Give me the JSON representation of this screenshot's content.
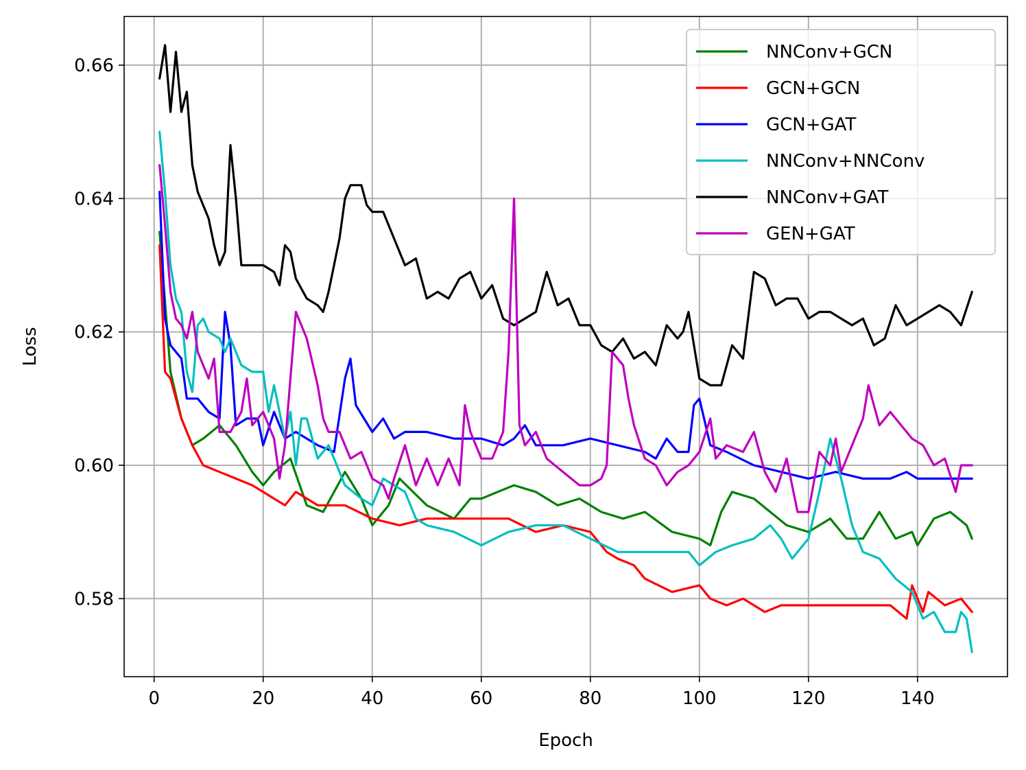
{
  "chart_data": {
    "type": "line",
    "title": "",
    "xlabel": "Epoch",
    "ylabel": "Loss",
    "xlim": [
      -5.5,
      156.5
    ],
    "ylim": [
      0.5683,
      0.6673
    ],
    "xticks": [
      0,
      20,
      40,
      60,
      80,
      100,
      120,
      140
    ],
    "yticks": [
      0.58,
      0.6,
      0.62,
      0.64,
      0.66
    ],
    "ytick_labels": [
      "0.58",
      "0.60",
      "0.62",
      "0.64",
      "0.66"
    ],
    "grid": true,
    "legend_position": "top-right",
    "series": [
      {
        "name": "NNConv+GCN",
        "color": "#008000",
        "x": [
          1,
          3,
          5,
          7,
          9,
          12,
          15,
          18,
          20,
          22,
          25,
          28,
          31,
          35,
          38,
          40,
          43,
          45,
          50,
          55,
          58,
          60,
          63,
          66,
          70,
          74,
          78,
          82,
          86,
          90,
          95,
          100,
          102,
          104,
          106,
          110,
          113,
          116,
          120,
          124,
          127,
          130,
          133,
          136,
          139,
          140,
          143,
          146,
          149,
          150
        ],
        "y": [
          0.635,
          0.614,
          0.607,
          0.603,
          0.604,
          0.606,
          0.603,
          0.599,
          0.597,
          0.599,
          0.601,
          0.594,
          0.593,
          0.599,
          0.595,
          0.591,
          0.594,
          0.598,
          0.594,
          0.592,
          0.595,
          0.595,
          0.596,
          0.597,
          0.596,
          0.594,
          0.595,
          0.593,
          0.592,
          0.593,
          0.59,
          0.589,
          0.588,
          0.593,
          0.596,
          0.595,
          0.593,
          0.591,
          0.59,
          0.592,
          0.589,
          0.589,
          0.593,
          0.589,
          0.59,
          0.588,
          0.592,
          0.593,
          0.591,
          0.589
        ]
      },
      {
        "name": "GCN+GCN",
        "color": "#ff0000",
        "x": [
          1,
          2,
          3,
          5,
          7,
          9,
          12,
          15,
          18,
          20,
          22,
          24,
          26,
          30,
          35,
          40,
          45,
          50,
          55,
          60,
          65,
          70,
          75,
          80,
          83,
          85,
          88,
          90,
          95,
          100,
          102,
          105,
          108,
          110,
          112,
          115,
          120,
          125,
          130,
          135,
          138,
          139,
          141,
          142,
          145,
          148,
          150
        ],
        "y": [
          0.633,
          0.614,
          0.613,
          0.607,
          0.603,
          0.6,
          0.599,
          0.598,
          0.597,
          0.596,
          0.595,
          0.594,
          0.596,
          0.594,
          0.594,
          0.592,
          0.591,
          0.592,
          0.592,
          0.592,
          0.592,
          0.59,
          0.591,
          0.59,
          0.587,
          0.586,
          0.585,
          0.583,
          0.581,
          0.582,
          0.58,
          0.579,
          0.58,
          0.579,
          0.578,
          0.579,
          0.579,
          0.579,
          0.579,
          0.579,
          0.577,
          0.582,
          0.578,
          0.581,
          0.579,
          0.58,
          0.578
        ]
      },
      {
        "name": "GCN+GAT",
        "color": "#0000ff",
        "x": [
          1,
          2,
          3,
          5,
          6,
          8,
          10,
          12,
          13,
          14,
          15,
          17,
          19,
          20,
          22,
          24,
          26,
          30,
          33,
          35,
          36,
          37,
          40,
          42,
          44,
          46,
          48,
          50,
          55,
          60,
          64,
          66,
          68,
          70,
          75,
          80,
          85,
          90,
          92,
          94,
          96,
          98,
          99,
          100,
          102,
          105,
          110,
          115,
          120,
          125,
          130,
          135,
          138,
          140,
          145,
          150
        ],
        "y": [
          0.641,
          0.622,
          0.618,
          0.616,
          0.61,
          0.61,
          0.608,
          0.607,
          0.623,
          0.618,
          0.606,
          0.607,
          0.607,
          0.603,
          0.608,
          0.604,
          0.605,
          0.603,
          0.602,
          0.613,
          0.616,
          0.609,
          0.605,
          0.607,
          0.604,
          0.605,
          0.605,
          0.605,
          0.604,
          0.604,
          0.603,
          0.604,
          0.606,
          0.603,
          0.603,
          0.604,
          0.603,
          0.602,
          0.601,
          0.604,
          0.602,
          0.602,
          0.609,
          0.61,
          0.603,
          0.602,
          0.6,
          0.599,
          0.598,
          0.599,
          0.598,
          0.598,
          0.599,
          0.598,
          0.598,
          0.598
        ]
      },
      {
        "name": "NNConv+NNConv",
        "color": "#00bfbf",
        "x": [
          1,
          2,
          3,
          4,
          5,
          6,
          7,
          8,
          9,
          10,
          12,
          13,
          14,
          16,
          18,
          20,
          21,
          22,
          24,
          25,
          26,
          27,
          28,
          30,
          32,
          35,
          38,
          40,
          42,
          44,
          46,
          48,
          50,
          55,
          60,
          65,
          70,
          75,
          80,
          85,
          90,
          95,
          98,
          100,
          103,
          106,
          110,
          113,
          115,
          117,
          120,
          122,
          124,
          126,
          128,
          130,
          133,
          136,
          139,
          141,
          143,
          145,
          147,
          148,
          149,
          150
        ],
        "y": [
          0.65,
          0.641,
          0.63,
          0.625,
          0.623,
          0.614,
          0.611,
          0.621,
          0.622,
          0.62,
          0.619,
          0.617,
          0.619,
          0.615,
          0.614,
          0.614,
          0.608,
          0.612,
          0.604,
          0.608,
          0.6,
          0.607,
          0.607,
          0.601,
          0.603,
          0.597,
          0.595,
          0.594,
          0.598,
          0.597,
          0.596,
          0.592,
          0.591,
          0.59,
          0.588,
          0.59,
          0.591,
          0.591,
          0.589,
          0.587,
          0.587,
          0.587,
          0.587,
          0.585,
          0.587,
          0.588,
          0.589,
          0.591,
          0.589,
          0.586,
          0.589,
          0.596,
          0.604,
          0.598,
          0.591,
          0.587,
          0.586,
          0.583,
          0.581,
          0.577,
          0.578,
          0.575,
          0.575,
          0.578,
          0.577,
          0.572
        ]
      },
      {
        "name": "NNConv+GAT",
        "color": "#000000",
        "x": [
          1,
          2,
          3,
          4,
          5,
          6,
          7,
          8,
          10,
          11,
          12,
          13,
          14,
          15,
          16,
          18,
          20,
          22,
          23,
          24,
          25,
          26,
          28,
          30,
          31,
          32,
          34,
          35,
          36,
          37,
          38,
          39,
          40,
          42,
          44,
          46,
          48,
          50,
          52,
          54,
          56,
          58,
          60,
          62,
          64,
          66,
          68,
          70,
          72,
          74,
          76,
          78,
          80,
          82,
          84,
          86,
          88,
          90,
          92,
          94,
          96,
          97,
          98,
          100,
          102,
          104,
          106,
          108,
          110,
          112,
          114,
          116,
          118,
          120,
          122,
          124,
          126,
          128,
          130,
          132,
          134,
          136,
          138,
          140,
          142,
          144,
          146,
          148,
          150
        ],
        "y": [
          0.658,
          0.663,
          0.653,
          0.662,
          0.653,
          0.656,
          0.645,
          0.641,
          0.637,
          0.633,
          0.63,
          0.632,
          0.648,
          0.64,
          0.63,
          0.63,
          0.63,
          0.629,
          0.627,
          0.633,
          0.632,
          0.628,
          0.625,
          0.624,
          0.623,
          0.626,
          0.634,
          0.64,
          0.642,
          0.642,
          0.642,
          0.639,
          0.638,
          0.638,
          0.634,
          0.63,
          0.631,
          0.625,
          0.626,
          0.625,
          0.628,
          0.629,
          0.625,
          0.627,
          0.622,
          0.621,
          0.622,
          0.623,
          0.629,
          0.624,
          0.625,
          0.621,
          0.621,
          0.618,
          0.617,
          0.619,
          0.616,
          0.617,
          0.615,
          0.621,
          0.619,
          0.62,
          0.623,
          0.613,
          0.612,
          0.612,
          0.618,
          0.616,
          0.629,
          0.628,
          0.624,
          0.625,
          0.625,
          0.622,
          0.623,
          0.623,
          0.622,
          0.621,
          0.622,
          0.618,
          0.619,
          0.624,
          0.621,
          0.622,
          0.623,
          0.624,
          0.623,
          0.621,
          0.626
        ]
      },
      {
        "name": "GEN+GAT",
        "color": "#bf00bf",
        "x": [
          1,
          2,
          3,
          4,
          5,
          6,
          7,
          8,
          10,
          11,
          12,
          14,
          16,
          17,
          18,
          20,
          22,
          23,
          24,
          26,
          27,
          28,
          30,
          31,
          32,
          34,
          36,
          38,
          40,
          42,
          43,
          44,
          46,
          48,
          50,
          52,
          54,
          56,
          57,
          58,
          60,
          62,
          64,
          65,
          66,
          67,
          68,
          70,
          72,
          75,
          78,
          80,
          82,
          83,
          84,
          86,
          87,
          88,
          90,
          92,
          94,
          96,
          98,
          100,
          102,
          103,
          105,
          108,
          110,
          112,
          114,
          116,
          118,
          120,
          122,
          124,
          125,
          126,
          128,
          130,
          131,
          133,
          135,
          137,
          139,
          141,
          143,
          145,
          147,
          148,
          149,
          150
        ],
        "y": [
          0.645,
          0.636,
          0.626,
          0.622,
          0.621,
          0.619,
          0.623,
          0.617,
          0.613,
          0.616,
          0.605,
          0.605,
          0.608,
          0.613,
          0.606,
          0.608,
          0.604,
          0.598,
          0.603,
          0.623,
          0.621,
          0.619,
          0.612,
          0.607,
          0.605,
          0.605,
          0.601,
          0.602,
          0.598,
          0.597,
          0.595,
          0.598,
          0.603,
          0.597,
          0.601,
          0.597,
          0.601,
          0.597,
          0.609,
          0.605,
          0.601,
          0.601,
          0.605,
          0.617,
          0.64,
          0.606,
          0.603,
          0.605,
          0.601,
          0.599,
          0.597,
          0.597,
          0.598,
          0.6,
          0.617,
          0.615,
          0.61,
          0.606,
          0.601,
          0.6,
          0.597,
          0.599,
          0.6,
          0.602,
          0.607,
          0.601,
          0.603,
          0.602,
          0.605,
          0.599,
          0.596,
          0.601,
          0.593,
          0.593,
          0.602,
          0.6,
          0.604,
          0.599,
          0.603,
          0.607,
          0.612,
          0.606,
          0.608,
          0.606,
          0.604,
          0.603,
          0.6,
          0.601,
          0.596,
          0.6,
          0.6,
          0.6
        ]
      }
    ]
  }
}
